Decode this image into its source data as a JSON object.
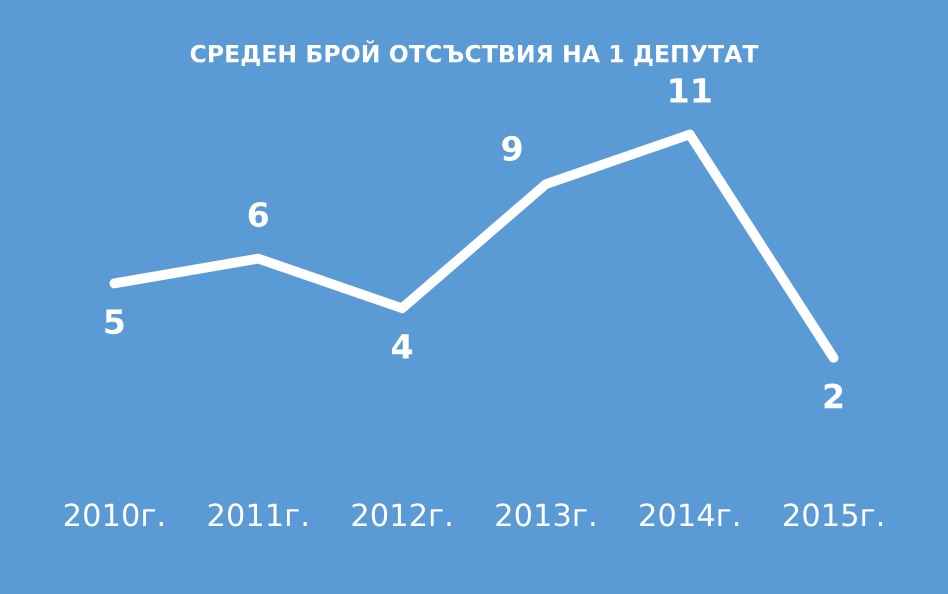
{
  "chart_data": {
    "type": "line",
    "title": "СРЕДЕН БРОЙ ОТСЪСТВИЯ НА 1 ДЕПУТАТ",
    "categories": [
      "2010г.",
      "2011г.",
      "2012г.",
      "2013г.",
      "2014г.",
      "2015г."
    ],
    "series": [
      {
        "color": "#ffffff",
        "values": [
          5,
          6,
          4,
          9,
          11,
          2
        ]
      }
    ],
    "data_labels": true,
    "grid": false,
    "legend": false,
    "line_style": "solid",
    "tick_labels": "x"
  }
}
